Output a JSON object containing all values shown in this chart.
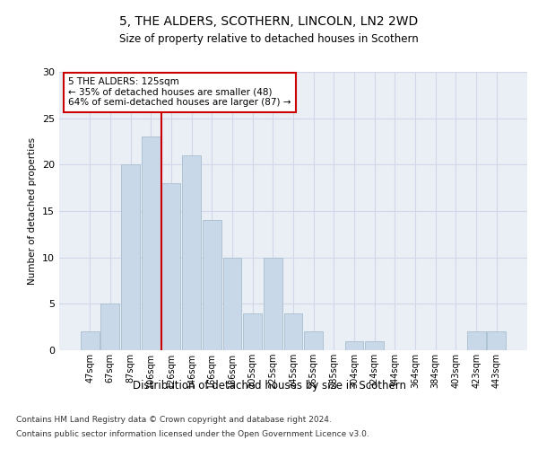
{
  "title1": "5, THE ALDERS, SCOTHERN, LINCOLN, LN2 2WD",
  "title2": "Size of property relative to detached houses in Scothern",
  "xlabel": "Distribution of detached houses by size in Scothern",
  "ylabel": "Number of detached properties",
  "annotation_line1": "5 THE ALDERS: 125sqm",
  "annotation_line2": "← 35% of detached houses are smaller (48)",
  "annotation_line3": "64% of semi-detached houses are larger (87) →",
  "bar_labels": [
    "47sqm",
    "67sqm",
    "87sqm",
    "106sqm",
    "126sqm",
    "146sqm",
    "166sqm",
    "186sqm",
    "205sqm",
    "225sqm",
    "245sqm",
    "265sqm",
    "285sqm",
    "304sqm",
    "324sqm",
    "344sqm",
    "364sqm",
    "384sqm",
    "403sqm",
    "423sqm",
    "443sqm"
  ],
  "bar_values": [
    2,
    5,
    20,
    23,
    18,
    21,
    14,
    10,
    4,
    10,
    4,
    2,
    0,
    1,
    1,
    0,
    0,
    0,
    0,
    2,
    2
  ],
  "bar_color": "#c8d8e8",
  "bar_edge_color": "#a8bece",
  "vline_x": 4.0,
  "vline_color": "#cc0000",
  "ylim": [
    0,
    30
  ],
  "yticks": [
    0,
    5,
    10,
    15,
    20,
    25,
    30
  ],
  "grid_color": "#d0d8e8",
  "bg_color": "#eaeff6",
  "footnote1": "Contains HM Land Registry data © Crown copyright and database right 2024.",
  "footnote2": "Contains public sector information licensed under the Open Government Licence v3.0."
}
